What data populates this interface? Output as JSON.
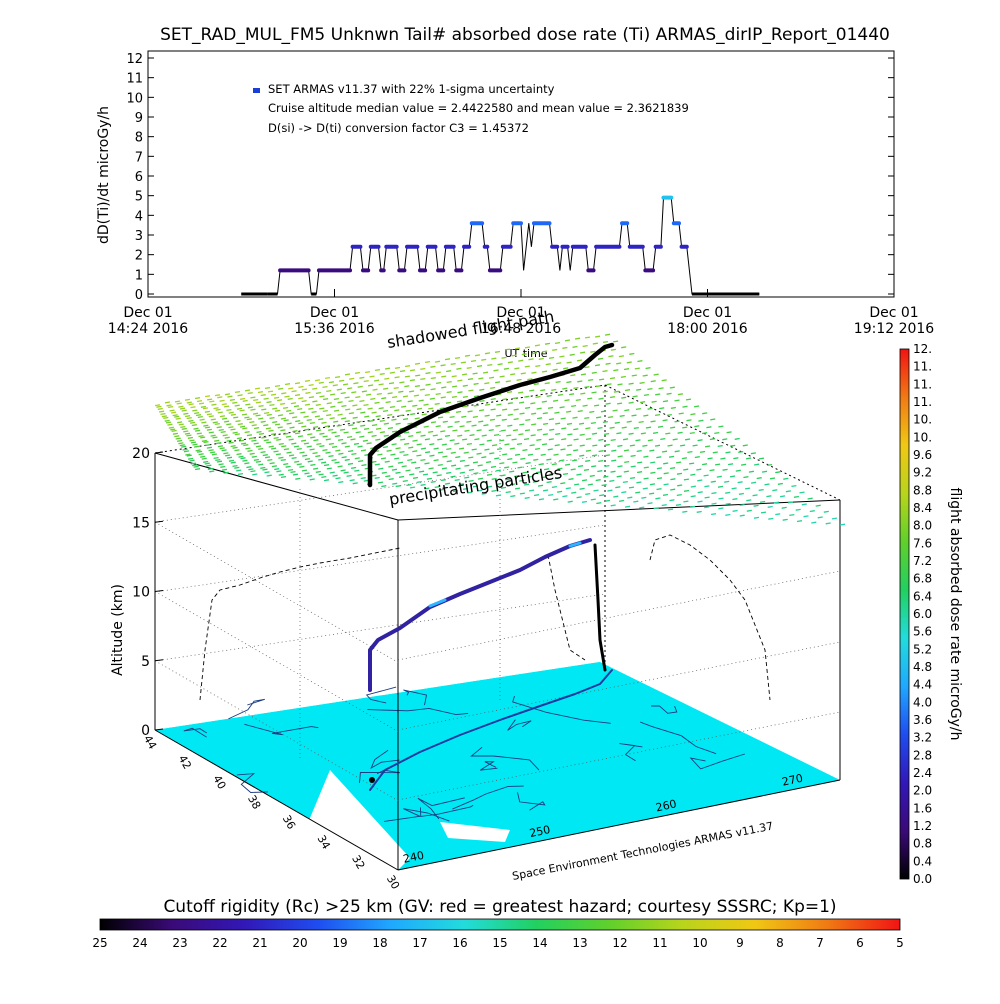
{
  "figure": {
    "title": "SET_RAD_MUL_FM5 Unknwn Tail#  absorbed dose rate (Ti) ARMAS_dirIP_Report_01440"
  },
  "chart_data": [
    {
      "type": "line",
      "title": "SET_RAD_MUL_FM5 Unknwn Tail#  absorbed dose rate (Ti) ARMAS_dirIP_Report_01440",
      "xlabel": "UT time",
      "ylabel": "dD(Ti)/dt microGy/h",
      "ylim": [
        0,
        12
      ],
      "yticks": [
        "0",
        "1",
        "2",
        "3",
        "4",
        "5",
        "6",
        "7",
        "8",
        "9",
        "10",
        "11",
        "12"
      ],
      "xticks": [
        {
          "top": "Dec 01",
          "bottom": "14:24 2016"
        },
        {
          "top": "Dec 01",
          "bottom": "15:36 2016"
        },
        {
          "top": "Dec 01",
          "bottom": "16:48 2016"
        },
        {
          "top": "Dec 01",
          "bottom": "18:00 2016"
        },
        {
          "top": "Dec 01",
          "bottom": "19:12 2016"
        }
      ],
      "xlim_minutes": [
        864,
        1152
      ],
      "legend": [
        "SET ARMAS v11.37 with 22% 1-sigma uncertainty",
        "Cruise altitude median value = 2.4422580 and mean value = 2.3621839",
        "D(si) -> D(ti) conversion factor C3 = 1.45372"
      ],
      "legend_marker_color": "#1a3fd6",
      "series": [
        {
          "points": [
            [
              900,
              0
            ],
            [
              910,
              0
            ],
            [
              914,
              0
            ],
            [
              915,
              1.2
            ],
            [
              926,
              1.2
            ],
            [
              927,
              0
            ],
            [
              929,
              0
            ],
            [
              930,
              1.2
            ],
            [
              942,
              1.2
            ],
            [
              943,
              2.4
            ],
            [
              946,
              2.4
            ],
            [
              947,
              1.2
            ],
            [
              949,
              1.2
            ],
            [
              950,
              2.4
            ],
            [
              953,
              2.4
            ],
            [
              954,
              1.2
            ],
            [
              955,
              1.2
            ],
            [
              956,
              2.4
            ],
            [
              960,
              2.4
            ],
            [
              961,
              1.2
            ],
            [
              963,
              1.2
            ],
            [
              964,
              2.4
            ],
            [
              968,
              2.4
            ],
            [
              969,
              1.2
            ],
            [
              971,
              1.2
            ],
            [
              972,
              2.4
            ],
            [
              975,
              2.4
            ],
            [
              976,
              1.2
            ],
            [
              978,
              1.2
            ],
            [
              979,
              2.4
            ],
            [
              982,
              2.4
            ],
            [
              983,
              1.2
            ],
            [
              985,
              1.2
            ],
            [
              986,
              2.4
            ],
            [
              988,
              2.4
            ],
            [
              989,
              3.6
            ],
            [
              993,
              3.6
            ],
            [
              994,
              2.4
            ],
            [
              995,
              2.4
            ],
            [
              996,
              1.2
            ],
            [
              1000,
              1.2
            ],
            [
              1001,
              2.4
            ],
            [
              1004,
              2.4
            ],
            [
              1005,
              3.6
            ],
            [
              1008,
              3.6
            ],
            [
              1009,
              1.2
            ],
            [
              1010,
              2.4
            ],
            [
              1011,
              3.6
            ],
            [
              1012,
              2.4
            ],
            [
              1013,
              3.6
            ],
            [
              1019,
              3.6
            ],
            [
              1020,
              2.4
            ],
            [
              1022,
              2.4
            ],
            [
              1023,
              1.2
            ],
            [
              1024,
              2.4
            ],
            [
              1026,
              2.4
            ],
            [
              1027,
              1.2
            ],
            [
              1028,
              2.4
            ],
            [
              1033,
              2.4
            ],
            [
              1034,
              1.2
            ],
            [
              1036,
              1.2
            ],
            [
              1037,
              2.4
            ],
            [
              1046,
              2.4
            ],
            [
              1047,
              3.6
            ],
            [
              1049,
              3.6
            ],
            [
              1050,
              2.4
            ],
            [
              1055,
              2.4
            ],
            [
              1056,
              1.2
            ],
            [
              1059,
              1.2
            ],
            [
              1060,
              2.4
            ],
            [
              1062,
              2.4
            ],
            [
              1063,
              4.9
            ],
            [
              1066,
              4.9
            ],
            [
              1067,
              3.6
            ],
            [
              1069,
              3.6
            ],
            [
              1070,
              2.4
            ],
            [
              1072,
              2.4
            ],
            [
              1073,
              1.2
            ],
            [
              1074,
              0
            ],
            [
              1100,
              0
            ]
          ]
        }
      ]
    },
    {
      "type": "scatter",
      "title": "",
      "zlabel": "Altitude (km)",
      "zticks": [
        "0",
        "5",
        "10",
        "15",
        "20"
      ],
      "lat_ticks": [
        "44",
        "42",
        "40",
        "38",
        "36",
        "34",
        "32",
        "30"
      ],
      "lon_ticks": [
        "240",
        "250",
        "260",
        "270"
      ],
      "annotations": [
        "shadowed flight path",
        "precipitating particles"
      ],
      "credit": "Space Environment Technologies ARMAS v11.37"
    }
  ],
  "colorbar_right": {
    "label": "flight absorbed dose rate microGy/h",
    "ticks": [
      "0.0",
      "0.4",
      "0.8",
      "1.2",
      "1.6",
      "2.0",
      "2.4",
      "2.8",
      "3.2",
      "3.6",
      "4.0",
      "4.4",
      "4.8",
      "5.2",
      "5.6",
      "6.0",
      "6.4",
      "6.8",
      "7.2",
      "7.6",
      "8.0",
      "8.4",
      "8.8",
      "9.2",
      "9.6",
      "10.",
      "10.",
      "11.",
      "11.",
      "11.",
      "12."
    ],
    "stops": [
      "#000000",
      "#3a0a78",
      "#3218b8",
      "#1f4df0",
      "#20a8ff",
      "#22dcdc",
      "#22d060",
      "#60d02c",
      "#b8d41c",
      "#f0c814",
      "#f07a14",
      "#f01414"
    ]
  },
  "colorbar_bottom": {
    "label": "Cutoff rigidity (Rc) >25 km (GV: red = greatest hazard; courtesy SSSRC; Kp=1)",
    "ticks": [
      "25",
      "24",
      "23",
      "22",
      "21",
      "20",
      "19",
      "18",
      "17",
      "16",
      "15",
      "14",
      "13",
      "12",
      "11",
      "10",
      "9",
      "8",
      "7",
      "6",
      "5"
    ],
    "stops": [
      "#000000",
      "#3a0a78",
      "#3218b8",
      "#1f4df0",
      "#20a8ff",
      "#22dcdc",
      "#22d060",
      "#60d02c",
      "#b8d41c",
      "#f0c814",
      "#f07a14",
      "#f01414"
    ]
  },
  "map_color": "#00e8f4"
}
